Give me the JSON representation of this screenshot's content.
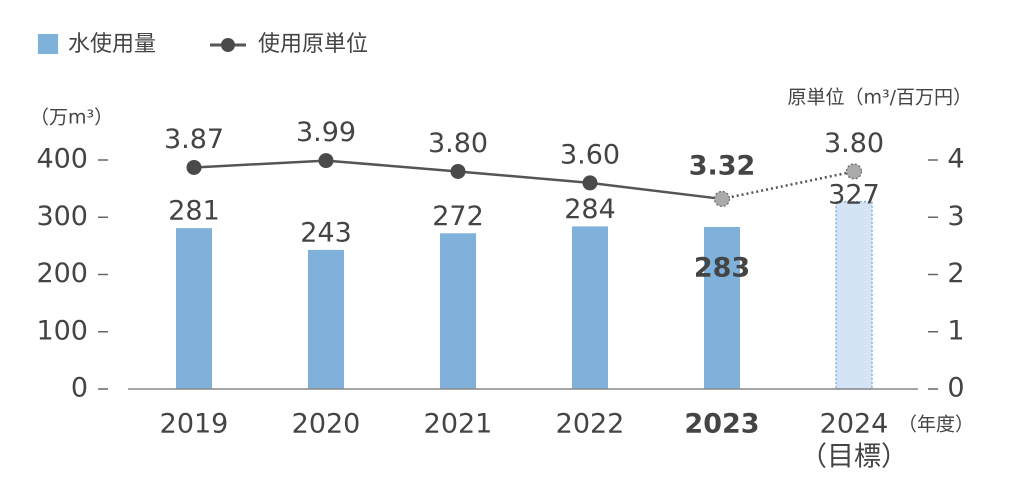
{
  "chart_data": {
    "type": "bar-line",
    "categories": [
      "2019",
      "2020",
      "2021",
      "2022",
      "2023",
      "2024"
    ],
    "target_label": "（目標）",
    "x_unit": "（年度）",
    "y_unit": "（万m³）",
    "y2_unit": "原単位（m³/百万円）",
    "bold_category": 4,
    "target_category": 5,
    "series": [
      {
        "name": "水使用量",
        "type": "bar",
        "color": "#80b1db",
        "target_color": "#d4e4f4",
        "values": [
          281,
          243,
          272,
          284,
          283,
          327
        ]
      },
      {
        "name": "使用原単位",
        "type": "line",
        "axis": "y2",
        "color": "#555555",
        "target_color": "#aaaaaa",
        "values": [
          3.87,
          3.99,
          3.8,
          3.6,
          3.32,
          3.8
        ],
        "value_labels": [
          "3.87",
          "3.99",
          "3.80",
          "3.60",
          "3.32",
          "3.80"
        ]
      }
    ],
    "ylim": [
      0,
      400
    ],
    "yticks": [
      0,
      100,
      200,
      300,
      400
    ],
    "y2lim": [
      0,
      4
    ],
    "y2ticks": [
      0,
      1,
      2,
      3,
      4
    ]
  }
}
